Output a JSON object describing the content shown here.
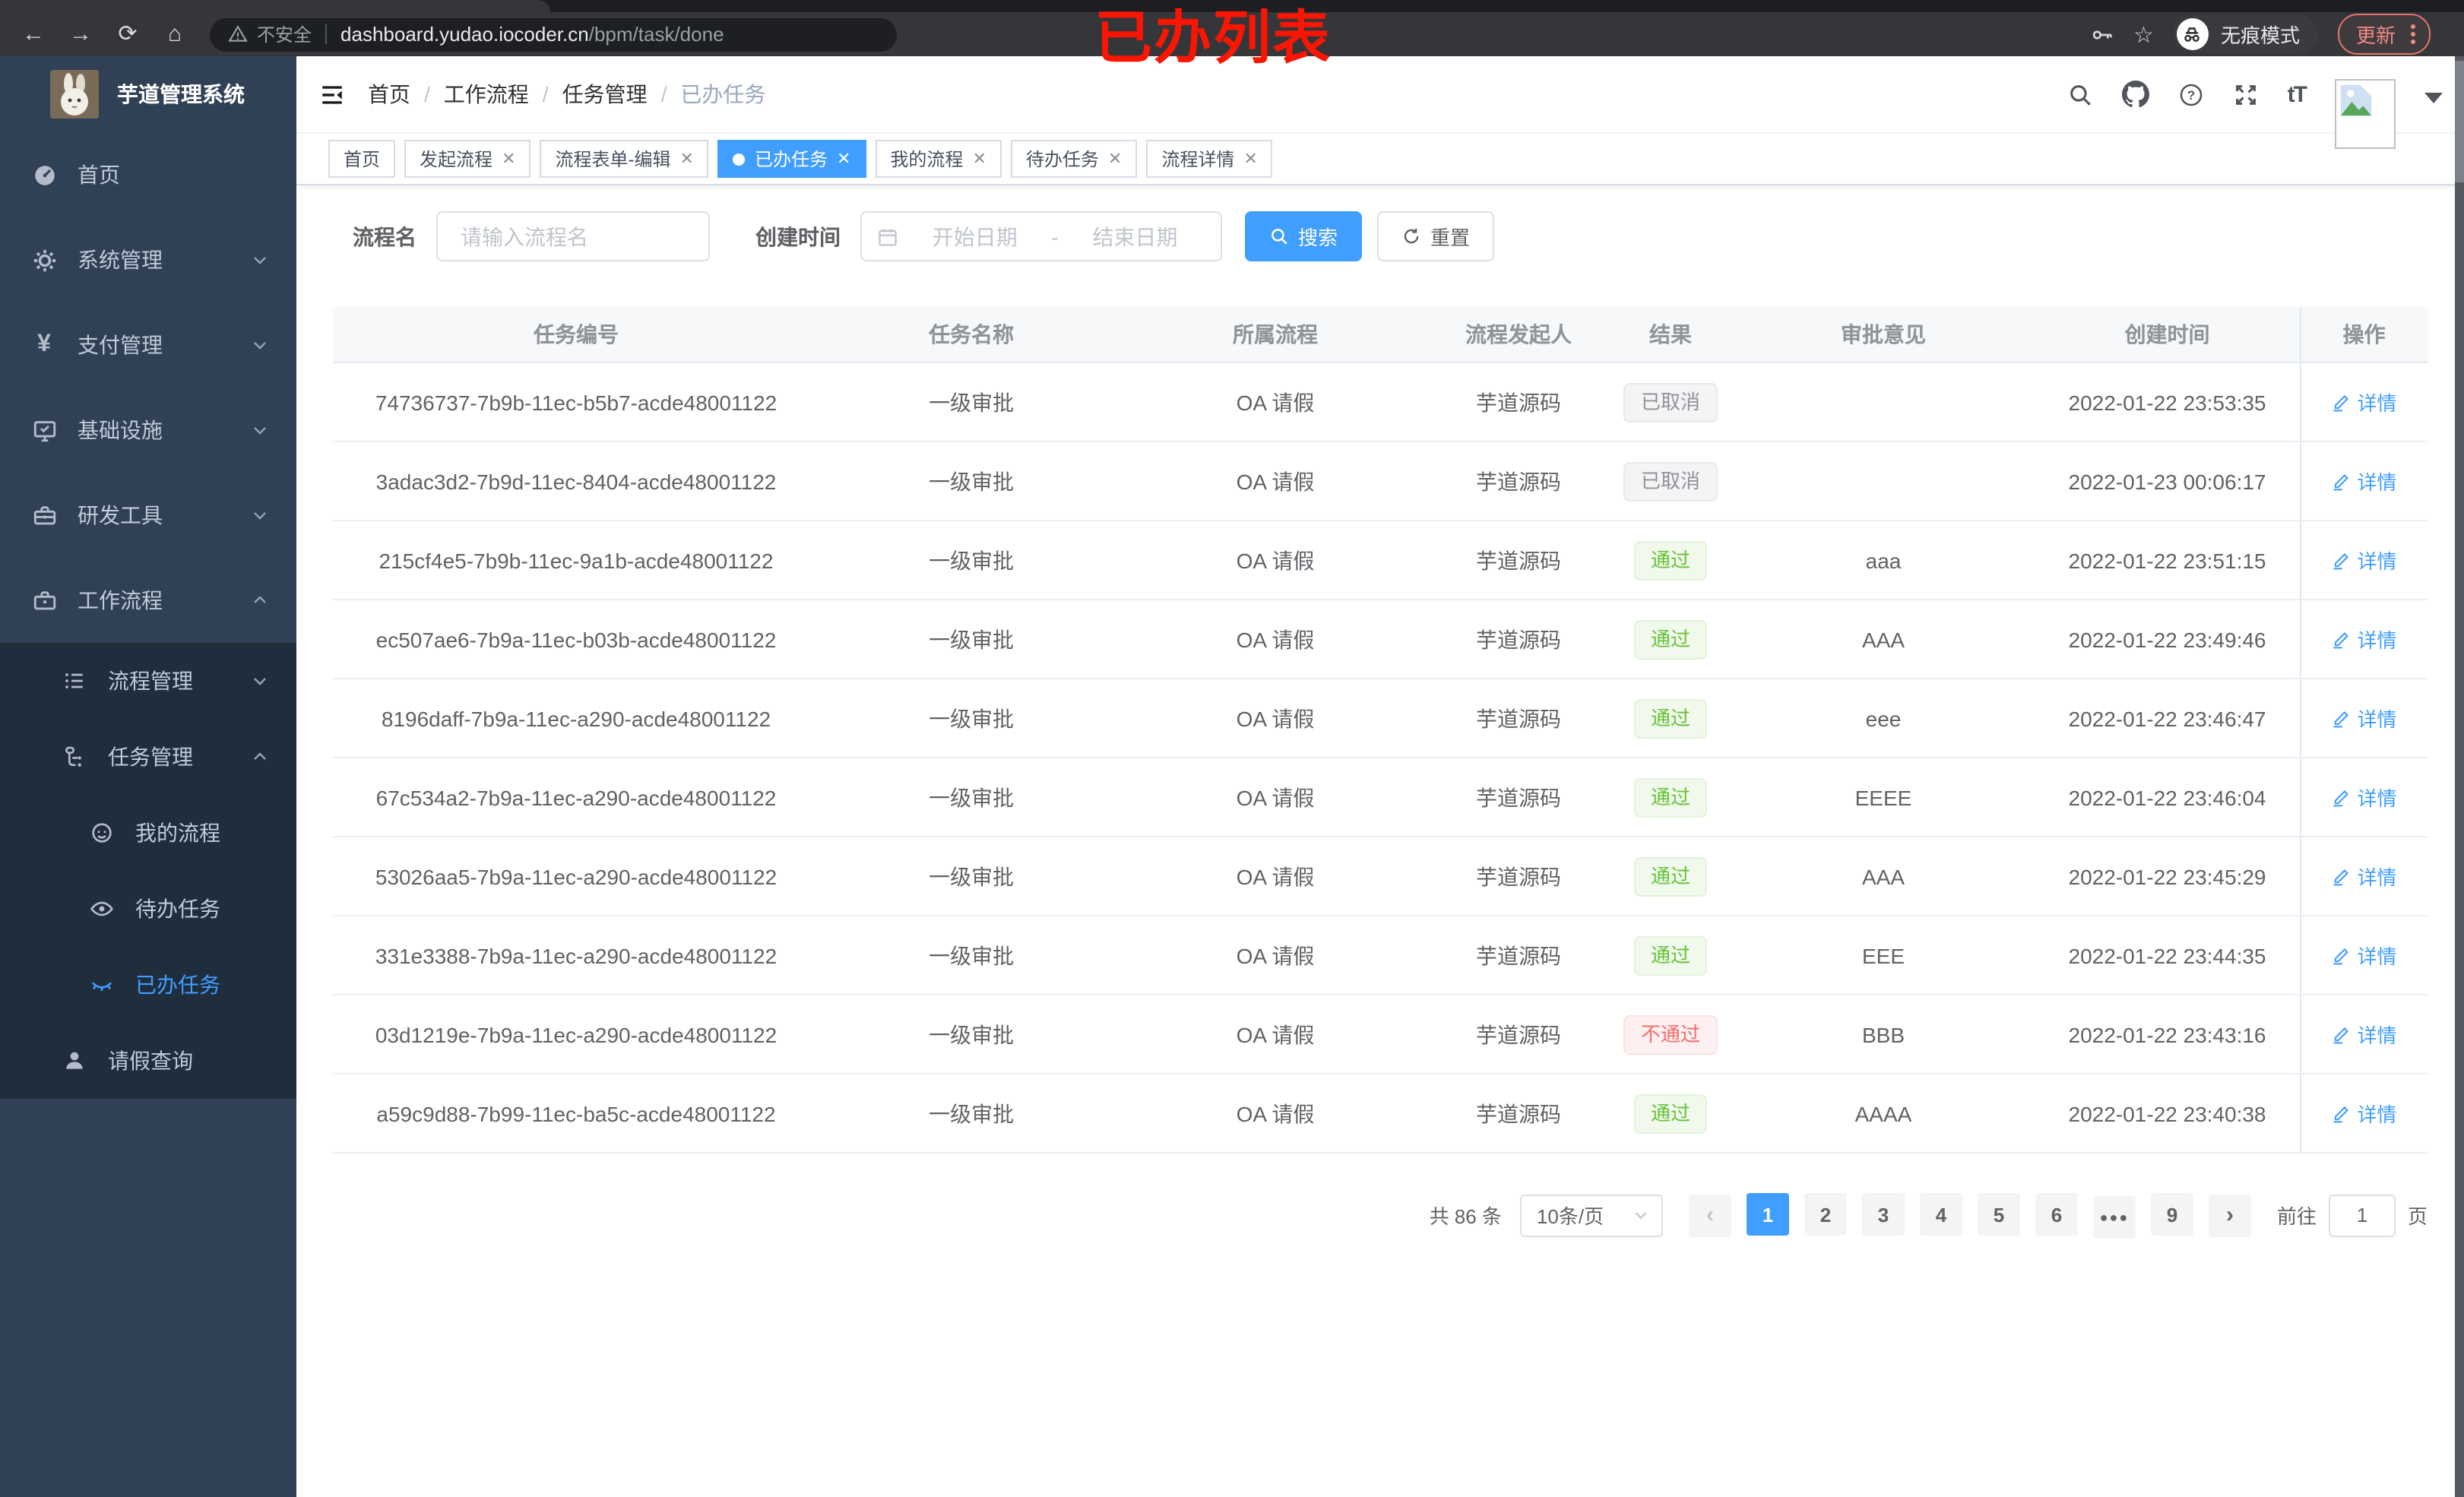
{
  "browser": {
    "security_label": "不安全",
    "url_domain": "dashboard.yudao.iocoder.cn",
    "url_path": "/bpm/task/done",
    "incognito_label": "无痕模式",
    "update_label": "更新"
  },
  "annotation": {
    "text": "已办列表"
  },
  "sidebar": {
    "logo_title": "芋道管理系统",
    "top_items": [
      "首页",
      "系统管理",
      "支付管理",
      "基础设施",
      "研发工具",
      "工作流程"
    ],
    "level2_items": [
      "流程管理",
      "任务管理",
      "请假查询"
    ],
    "level3_items": [
      "我的流程",
      "待办任务",
      "已办任务"
    ],
    "active_item": "已办任务"
  },
  "navbar": {
    "breadcrumb": [
      "首页",
      "工作流程",
      "任务管理",
      "已办任务"
    ],
    "separator": "/"
  },
  "tabs": {
    "items": [
      {
        "label": "首页",
        "closable": false,
        "active": false
      },
      {
        "label": "发起流程",
        "closable": true,
        "active": false
      },
      {
        "label": "流程表单-编辑",
        "closable": true,
        "active": false
      },
      {
        "label": "已办任务",
        "closable": true,
        "active": true
      },
      {
        "label": "我的流程",
        "closable": true,
        "active": false
      },
      {
        "label": "待办任务",
        "closable": true,
        "active": false
      },
      {
        "label": "流程详情",
        "closable": true,
        "active": false
      }
    ]
  },
  "filters": {
    "name_label": "流程名",
    "name_placeholder": "请输入流程名",
    "time_label": "创建时间",
    "start_placeholder": "开始日期",
    "range_separator": "-",
    "end_placeholder": "结束日期",
    "search_label": "搜索",
    "reset_label": "重置"
  },
  "table": {
    "columns": [
      "任务编号",
      "任务名称",
      "所属流程",
      "流程发起人",
      "结果",
      "审批意见",
      "创建时间",
      "操作"
    ],
    "detail_label": "详情",
    "rows": [
      {
        "id": "74736737-7b9b-11ec-b5b7-acde48001122",
        "name": "一级审批",
        "process": "OA 请假",
        "starter": "芋道源码",
        "result": "已取消",
        "result_type": "info",
        "comment": "",
        "time": "2022-01-22 23:53:35"
      },
      {
        "id": "3adac3d2-7b9d-11ec-8404-acde48001122",
        "name": "一级审批",
        "process": "OA 请假",
        "starter": "芋道源码",
        "result": "已取消",
        "result_type": "info",
        "comment": "",
        "time": "2022-01-23 00:06:17"
      },
      {
        "id": "215cf4e5-7b9b-11ec-9a1b-acde48001122",
        "name": "一级审批",
        "process": "OA 请假",
        "starter": "芋道源码",
        "result": "通过",
        "result_type": "success",
        "comment": "aaa",
        "time": "2022-01-22 23:51:15"
      },
      {
        "id": "ec507ae6-7b9a-11ec-b03b-acde48001122",
        "name": "一级审批",
        "process": "OA 请假",
        "starter": "芋道源码",
        "result": "通过",
        "result_type": "success",
        "comment": "AAA",
        "time": "2022-01-22 23:49:46"
      },
      {
        "id": "8196daff-7b9a-11ec-a290-acde48001122",
        "name": "一级审批",
        "process": "OA 请假",
        "starter": "芋道源码",
        "result": "通过",
        "result_type": "success",
        "comment": "eee",
        "time": "2022-01-22 23:46:47"
      },
      {
        "id": "67c534a2-7b9a-11ec-a290-acde48001122",
        "name": "一级审批",
        "process": "OA 请假",
        "starter": "芋道源码",
        "result": "通过",
        "result_type": "success",
        "comment": "EEEE",
        "time": "2022-01-22 23:46:04"
      },
      {
        "id": "53026aa5-7b9a-11ec-a290-acde48001122",
        "name": "一级审批",
        "process": "OA 请假",
        "starter": "芋道源码",
        "result": "通过",
        "result_type": "success",
        "comment": "AAA",
        "time": "2022-01-22 23:45:29"
      },
      {
        "id": "331e3388-7b9a-11ec-a290-acde48001122",
        "name": "一级审批",
        "process": "OA 请假",
        "starter": "芋道源码",
        "result": "通过",
        "result_type": "success",
        "comment": "EEE",
        "time": "2022-01-22 23:44:35"
      },
      {
        "id": "03d1219e-7b9a-11ec-a290-acde48001122",
        "name": "一级审批",
        "process": "OA 请假",
        "starter": "芋道源码",
        "result": "不通过",
        "result_type": "danger",
        "comment": "BBB",
        "time": "2022-01-22 23:43:16"
      },
      {
        "id": "a59c9d88-7b99-11ec-ba5c-acde48001122",
        "name": "一级审批",
        "process": "OA 请假",
        "starter": "芋道源码",
        "result": "通过",
        "result_type": "success",
        "comment": "AAAA",
        "time": "2022-01-22 23:40:38"
      }
    ]
  },
  "pagination": {
    "total_text": "共 86 条",
    "page_size": "10条/页",
    "pages": [
      "1",
      "2",
      "3",
      "4",
      "5",
      "6",
      "...",
      "9"
    ],
    "active_page": "1",
    "goto_label": "前往",
    "goto_value": "1",
    "page_unit": "页"
  }
}
